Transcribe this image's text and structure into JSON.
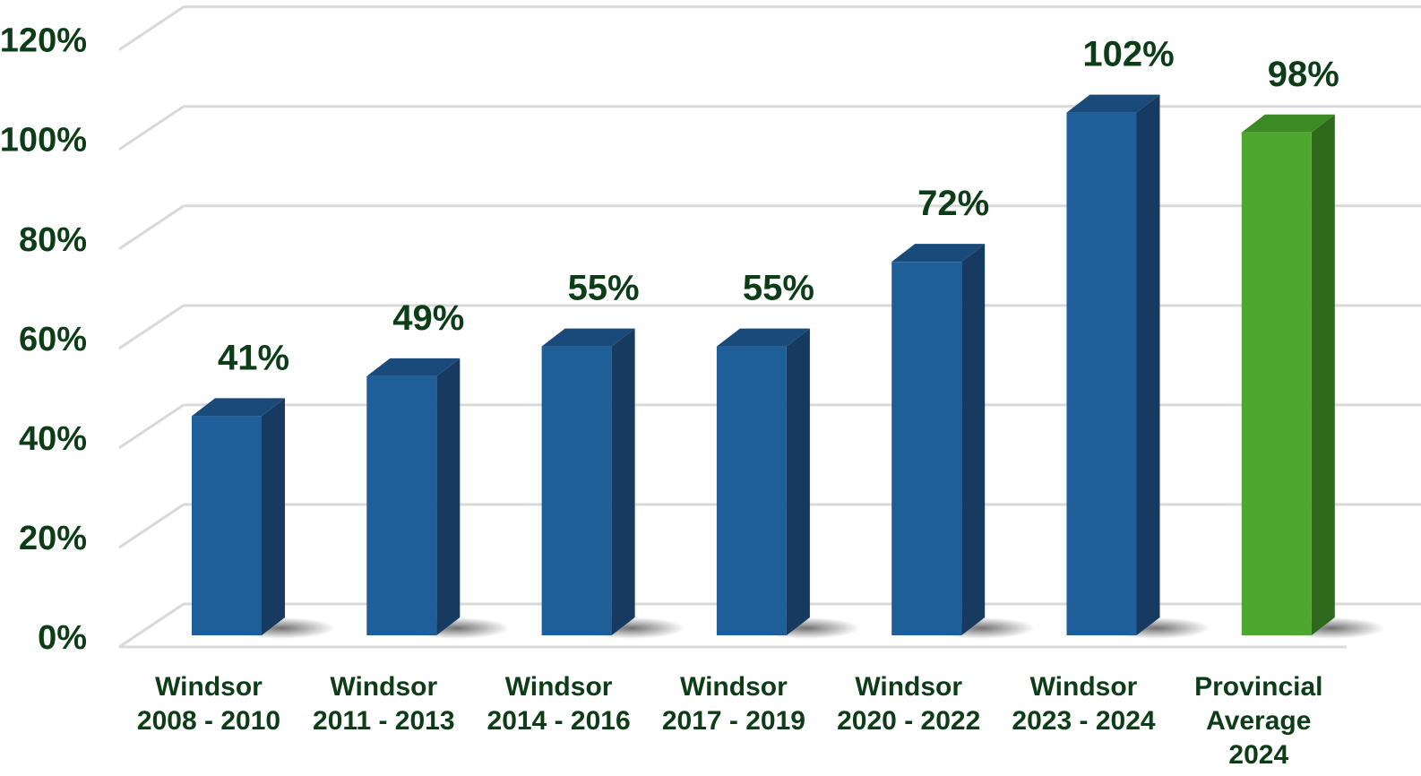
{
  "chart_data": {
    "type": "bar",
    "title": "",
    "xlabel": "",
    "ylabel": "",
    "categories": [
      [
        "Windsor",
        "2008 - 2010"
      ],
      [
        "Windsor",
        "2011 - 2013"
      ],
      [
        "Windsor",
        "2014 - 2016"
      ],
      [
        "Windsor",
        "2017 - 2019"
      ],
      [
        "Windsor",
        "2020 - 2022"
      ],
      [
        "Windsor",
        "2023 - 2024"
      ],
      [
        "Provincial",
        "Average",
        "2024"
      ]
    ],
    "values": [
      41,
      49,
      55,
      55,
      72,
      102,
      98
    ],
    "data_labels": [
      "41%",
      "49%",
      "55%",
      "55%",
      "72%",
      "102%",
      "98%"
    ],
    "ylim": [
      0,
      120
    ],
    "yticks": [
      0,
      20,
      40,
      60,
      80,
      100,
      120
    ],
    "ytick_labels": [
      "0%",
      "20%",
      "40%",
      "60%",
      "80%",
      "100%",
      "120%"
    ],
    "grid": true,
    "legend": "none",
    "three_d": true,
    "colors": {
      "bar_front": "#1f5f99",
      "bar_side": "#173a60",
      "bar_top": "#1a4a7a",
      "highlight_front": "#4ea72e",
      "highlight_side": "#2f6a1c",
      "highlight_top": "#3c8a24",
      "text": "#0d3d17",
      "grid": "#d9d9d9"
    },
    "highlight_index": 6
  }
}
